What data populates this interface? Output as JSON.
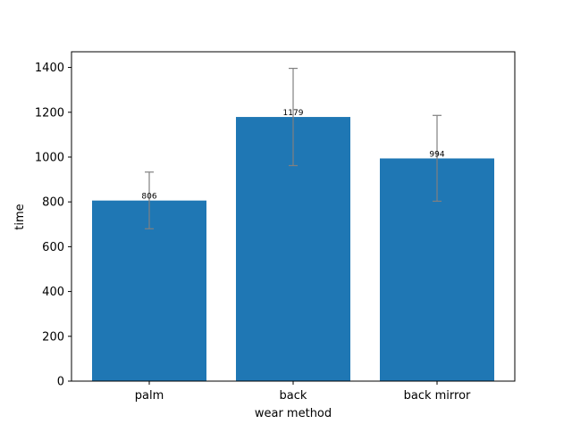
{
  "chart_data": {
    "type": "bar",
    "title": "",
    "xlabel": "wear method",
    "ylabel": "time",
    "categories": [
      "palm",
      "back",
      "back mirror"
    ],
    "values": [
      806,
      1179,
      994
    ],
    "errors": [
      [
        680,
        933
      ],
      [
        962,
        1396
      ],
      [
        803,
        1186
      ]
    ],
    "data_labels": [
      "806",
      "1179",
      "994"
    ],
    "ylim": [
      0,
      1470
    ],
    "yticks": [
      0,
      200,
      400,
      600,
      800,
      1000,
      1200,
      1400
    ],
    "ytick_labels": [
      "0",
      "200",
      "400",
      "600",
      "800",
      "1000",
      "1200",
      "1400"
    ],
    "grid": false,
    "bar_color": "#1f77b4",
    "error_color": "#808080"
  }
}
